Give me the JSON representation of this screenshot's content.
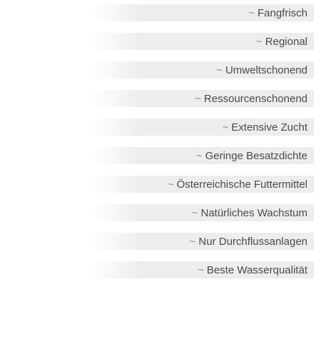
{
  "features": {
    "prefix": "~",
    "items": [
      {
        "label": "Fangfrisch"
      },
      {
        "label": "Regional"
      },
      {
        "label": "Umweltschonend"
      },
      {
        "label": "Ressourcenschonend"
      },
      {
        "label": "Extensive Zucht"
      },
      {
        "label": "Geringe Besatzdichte"
      },
      {
        "label": "Österreichische Futtermittel"
      },
      {
        "label": "Natürliches Wachstum"
      },
      {
        "label": "Nur Durchflussanlagen"
      },
      {
        "label": "Beste Wasserqualität"
      }
    ]
  }
}
